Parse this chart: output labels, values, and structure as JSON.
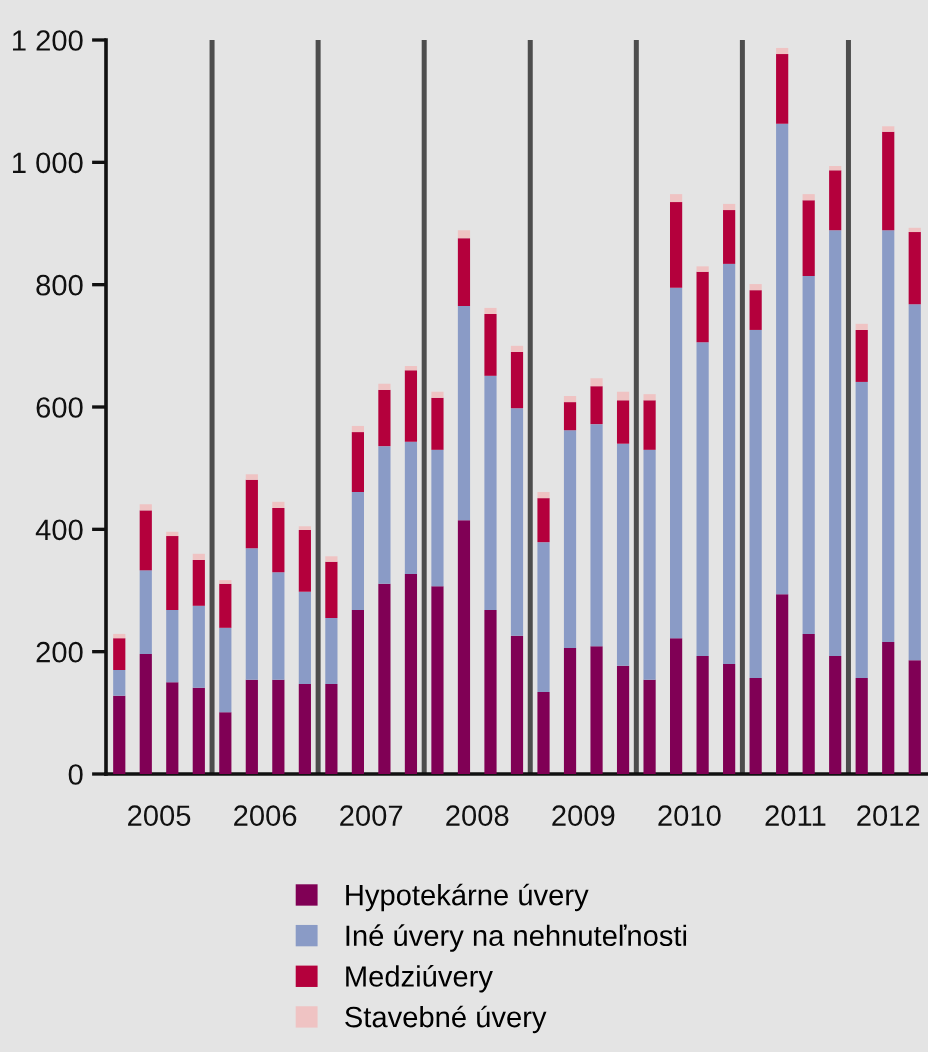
{
  "chart_data": {
    "type": "bar",
    "stacked": true,
    "x": [
      2005.125,
      2005.375,
      2005.625,
      2005.875,
      2006.125,
      2006.375,
      2006.625,
      2006.875,
      2007.125,
      2007.375,
      2007.625,
      2007.875,
      2008.125,
      2008.375,
      2008.625,
      2008.875,
      2009.125,
      2009.375,
      2009.625,
      2009.875,
      2010.125,
      2010.375,
      2010.625,
      2010.875,
      2011.125,
      2011.375,
      2011.625,
      2011.875,
      2012.125,
      2012.375,
      2012.625
    ],
    "series": [
      {
        "name": "Hypotekárne úvery",
        "color": "#800055",
        "values": [
          128,
          196,
          150,
          141,
          101,
          154,
          154,
          147,
          147,
          268,
          311,
          327,
          307,
          415,
          268,
          226,
          134,
          206,
          209,
          177,
          154,
          222,
          193,
          180,
          157,
          294,
          229,
          193,
          157,
          216,
          186
        ]
      },
      {
        "name": "Iné úvery na nehnuteľnosti",
        "color": "#8a9bc6",
        "values": [
          42,
          137,
          118,
          134,
          138,
          215,
          176,
          151,
          108,
          193,
          225,
          216,
          223,
          350,
          383,
          372,
          245,
          356,
          363,
          363,
          376,
          573,
          513,
          654,
          569,
          769,
          585,
          696,
          484,
          673,
          582
        ]
      },
      {
        "name": "Medziúvery",
        "color": "#b4003c",
        "values": [
          52,
          98,
          121,
          75,
          72,
          112,
          105,
          101,
          92,
          98,
          92,
          117,
          85,
          111,
          101,
          92,
          72,
          46,
          62,
          71,
          81,
          140,
          115,
          88,
          65,
          114,
          124,
          98,
          85,
          161,
          118
        ]
      },
      {
        "name": "Stavebné úvery",
        "color": "#efc3c3",
        "values": [
          7,
          10,
          7,
          10,
          6,
          9,
          10,
          6,
          9,
          10,
          10,
          7,
          10,
          13,
          10,
          10,
          10,
          10,
          13,
          14,
          10,
          13,
          9,
          10,
          10,
          10,
          10,
          7,
          10,
          9,
          7
        ]
      }
    ],
    "xlim": [
      2005,
      2012.75
    ],
    "xticks": [
      {
        "value": 2005.5,
        "label": "2005"
      },
      {
        "value": 2006.5,
        "label": "2006"
      },
      {
        "value": 2007.5,
        "label": "2007"
      },
      {
        "value": 2008.5,
        "label": "2008"
      },
      {
        "value": 2009.5,
        "label": "2009"
      },
      {
        "value": 2010.5,
        "label": "2010"
      },
      {
        "value": 2011.5,
        "label": "2011"
      },
      {
        "value": 2012.375,
        "label": "2012"
      }
    ],
    "ylim": [
      0,
      1200
    ],
    "yticks": [
      0,
      200,
      400,
      600,
      800,
      {
        "value": 1000,
        "label": "1 000"
      },
      {
        "value": 1200,
        "label": "1 200"
      }
    ],
    "ref_lines": [
      {
        "axis": "x",
        "value": 2006,
        "color": "#4d4d4d"
      },
      {
        "axis": "x",
        "value": 2007,
        "color": "#4d4d4d"
      },
      {
        "axis": "x",
        "value": 2008,
        "color": "#4d4d4d"
      },
      {
        "axis": "x",
        "value": 2009,
        "color": "#4d4d4d"
      },
      {
        "axis": "x",
        "value": 2010,
        "color": "#4d4d4d"
      },
      {
        "axis": "x",
        "value": 2011,
        "color": "#4d4d4d"
      },
      {
        "axis": "x",
        "value": 2012,
        "color": "#4d4d4d"
      }
    ],
    "legend": "bottom"
  }
}
